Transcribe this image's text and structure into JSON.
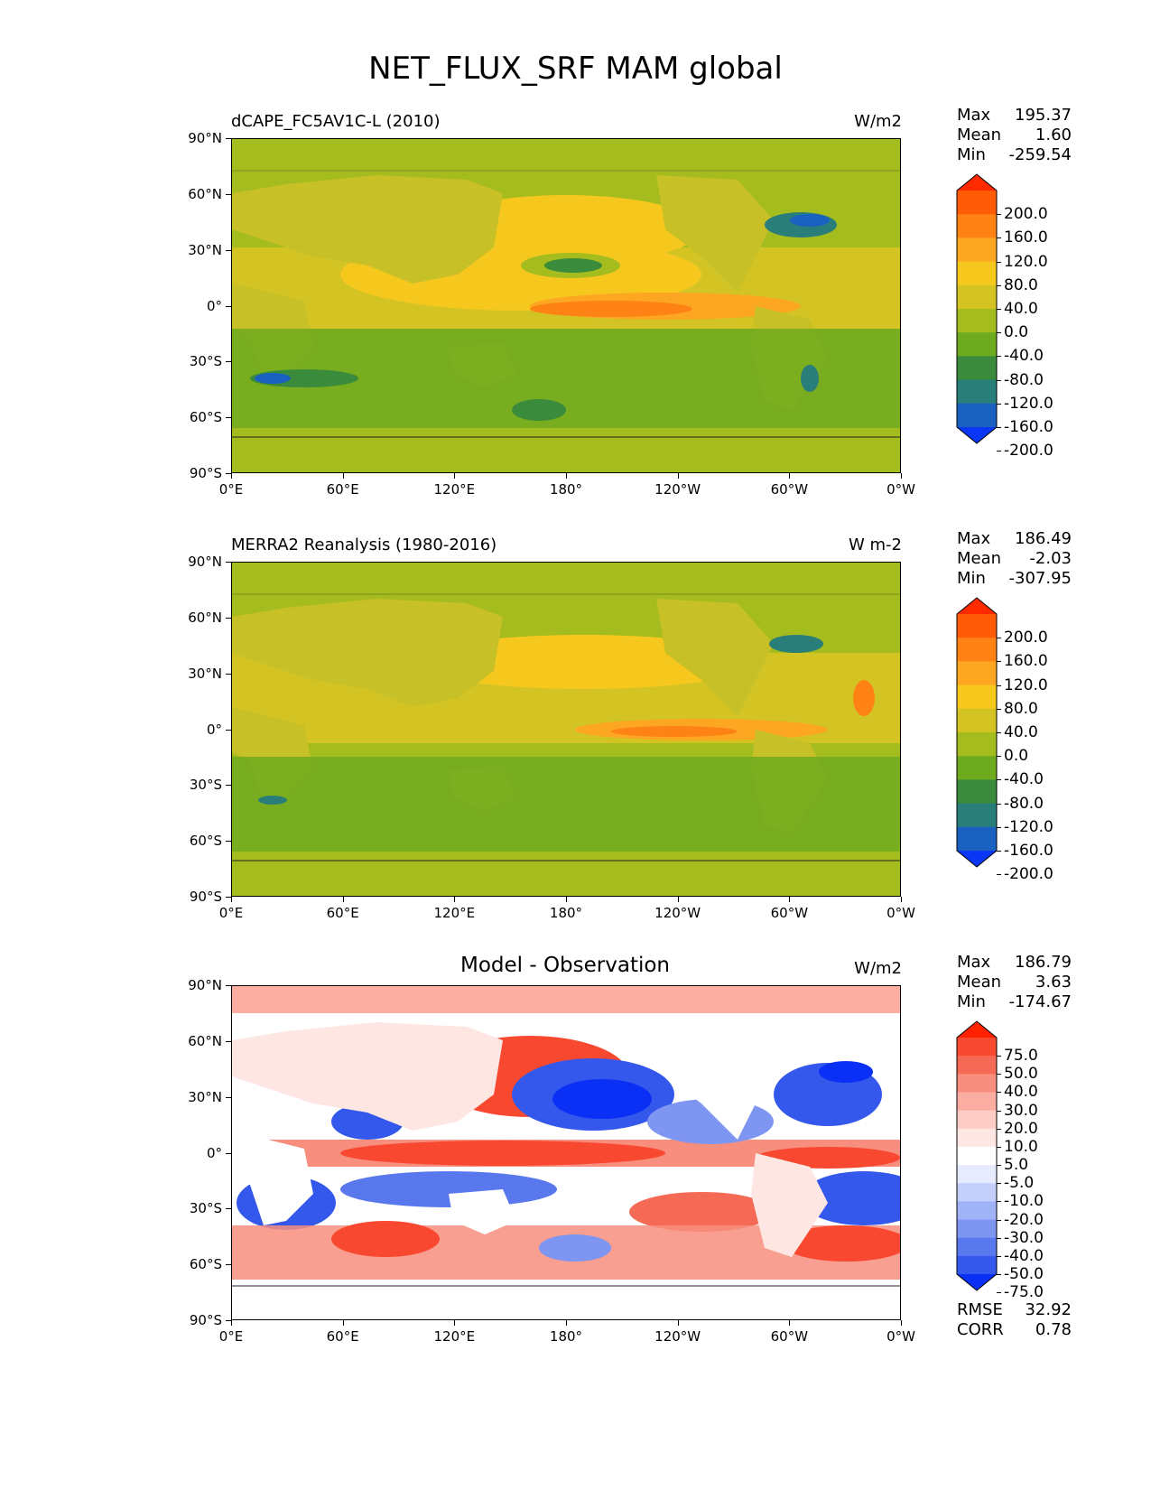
{
  "figure": {
    "title": "NET_FLUX_SRF MAM global"
  },
  "axes": {
    "lat_ticks": [
      "90°N",
      "60°N",
      "30°N",
      "0°",
      "30°S",
      "60°S",
      "90°S"
    ],
    "lon_ticks": [
      "0°E",
      "60°E",
      "120°E",
      "180°",
      "120°W",
      "60°W",
      "0°W"
    ]
  },
  "panels": [
    {
      "label": "dCAPE_FC5AV1C-L (2010)",
      "center_title": "",
      "units": "W/m2",
      "stats": {
        "max_label": "Max",
        "max": "195.37",
        "mean_label": "Mean",
        "mean": "1.60",
        "min_label": "Min",
        "min": "-259.54"
      },
      "colorbar": {
        "labels": [
          "200.0",
          "160.0",
          "120.0",
          "80.0",
          "40.0",
          "0.0",
          "-40.0",
          "-80.0",
          "-120.0",
          "-160.0",
          "-200.0"
        ],
        "colors": [
          "#ff2a00",
          "#ff5a05",
          "#ff8314",
          "#fda622",
          "#f6c81e",
          "#d3c424",
          "#a5bc1e",
          "#6eaa1e",
          "#3a8c3c",
          "#2a7e7a",
          "#1a60c0",
          "#0a36f5"
        ]
      }
    },
    {
      "label": "MERRA2 Reanalysis (1980-2016)",
      "center_title": "",
      "units": "W m-2",
      "stats": {
        "max_label": "Max",
        "max": "186.49",
        "mean_label": "Mean",
        "mean": "-2.03",
        "min_label": "Min",
        "min": "-307.95"
      },
      "colorbar": {
        "labels": [
          "200.0",
          "160.0",
          "120.0",
          "80.0",
          "40.0",
          "0.0",
          "-40.0",
          "-80.0",
          "-120.0",
          "-160.0",
          "-200.0"
        ],
        "colors": [
          "#ff2a00",
          "#ff5a05",
          "#ff8314",
          "#fda622",
          "#f6c81e",
          "#d3c424",
          "#a5bc1e",
          "#6eaa1e",
          "#3a8c3c",
          "#2a7e7a",
          "#1a60c0",
          "#0a36f5"
        ]
      }
    },
    {
      "label": "",
      "center_title": "Model - Observation",
      "units": "W/m2",
      "stats": {
        "max_label": "Max",
        "max": "186.79",
        "mean_label": "Mean",
        "mean": "3.63",
        "min_label": "Min",
        "min": "-174.67"
      },
      "colorbar": {
        "labels": [
          "75.0",
          "50.0",
          "40.0",
          "30.0",
          "20.0",
          "10.0",
          "5.0",
          "-5.0",
          "-10.0",
          "-20.0",
          "-30.0",
          "-40.0",
          "-50.0",
          "-75.0"
        ],
        "colors": [
          "#ff2200",
          "#f84830",
          "#f56a55",
          "#f88e7e",
          "#fbada2",
          "#fdcdc5",
          "#fee6e2",
          "#ffffff",
          "#e6ebfd",
          "#c4d0fb",
          "#a0b3f7",
          "#7e96f2",
          "#5a78ee",
          "#3458eb",
          "#0a30f5"
        ]
      },
      "extra_stats": {
        "rmse_label": "RMSE",
        "rmse": "32.92",
        "corr_label": "CORR",
        "corr": "0.78"
      }
    }
  ]
}
